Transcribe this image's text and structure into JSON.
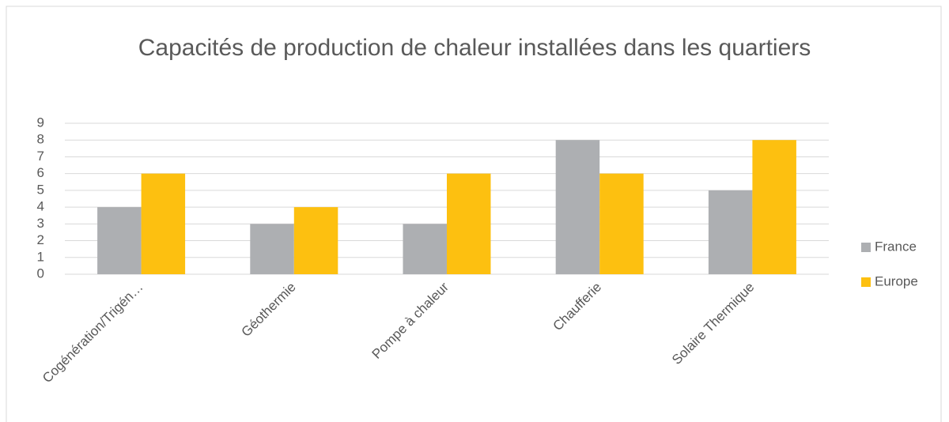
{
  "chart_data": {
    "type": "bar",
    "title": "Capacités de production de chaleur installées dans les quartiers",
    "categories": [
      "Cogénération/Trigén…",
      "Géothermie",
      "Pompe à chaleur",
      "Chaufferie",
      "Solaire Thermique"
    ],
    "series": [
      {
        "name": "France",
        "color": "#adafb2",
        "values": [
          4,
          3,
          3,
          8,
          5
        ]
      },
      {
        "name": "Europe",
        "color": "#fdc010",
        "values": [
          6,
          4,
          6,
          6,
          8
        ]
      }
    ],
    "ylim": [
      0,
      9
    ],
    "yticks": [
      0,
      1,
      2,
      3,
      4,
      5,
      6,
      7,
      8,
      9
    ],
    "grid": true,
    "legend": "right"
  }
}
